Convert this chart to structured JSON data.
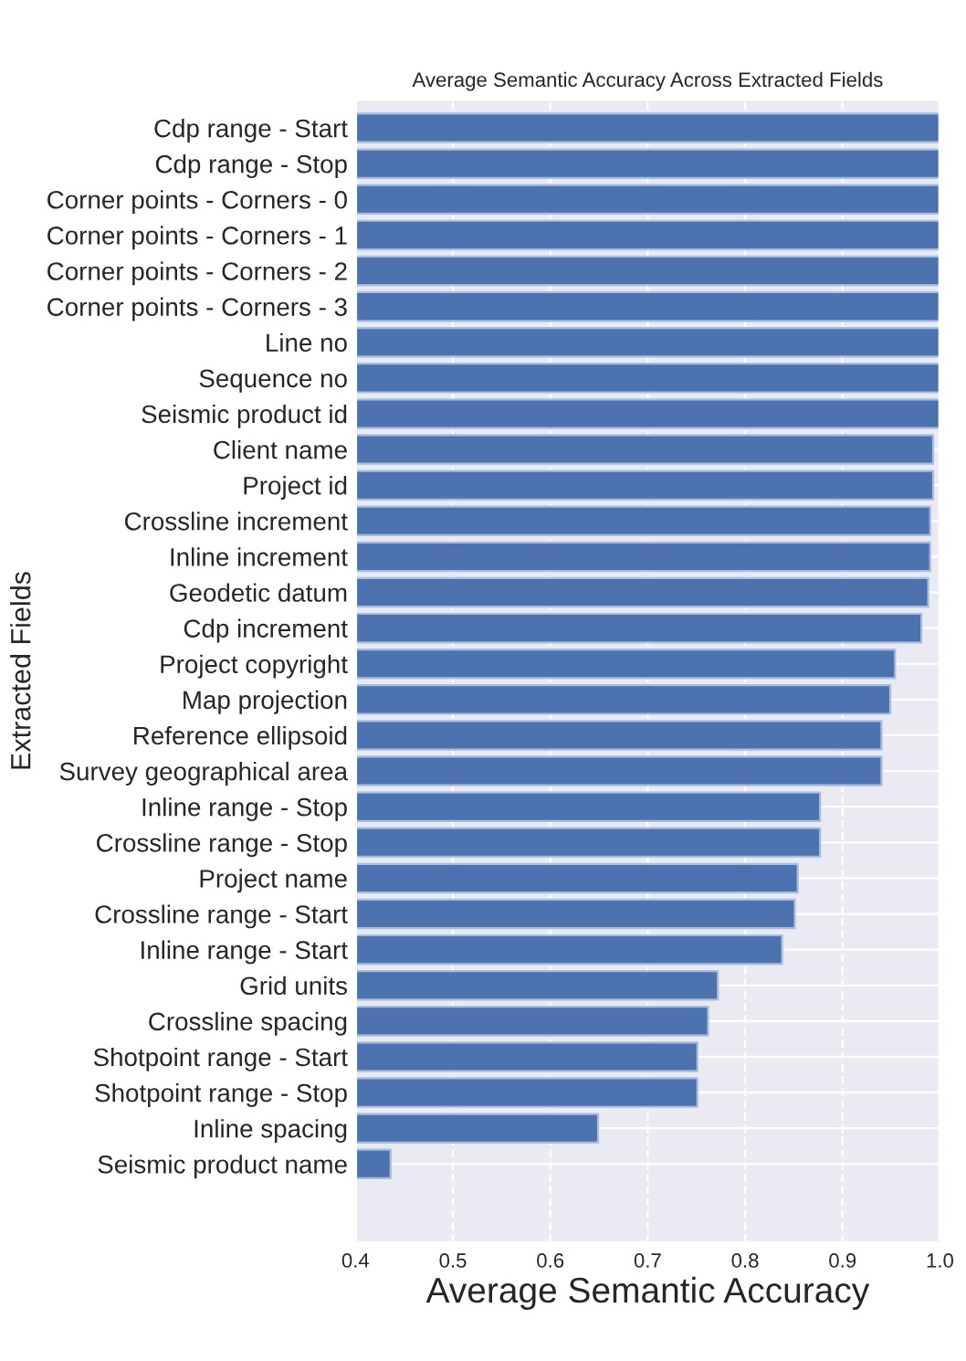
{
  "chart_data": {
    "type": "bar",
    "orientation": "horizontal",
    "title": "Average Semantic Accuracy Across Extracted Fields",
    "xlabel": "Average Semantic Accuracy",
    "ylabel": "Extracted Fields",
    "categories": [
      "Cdp range - Start",
      "Cdp range - Stop",
      "Corner points - Corners - 0",
      "Corner points - Corners - 1",
      "Corner points - Corners - 2",
      "Corner points - Corners - 3",
      "Line no",
      "Sequence no",
      "Seismic product id",
      "Client name",
      "Project id",
      "Crossline increment",
      "Inline increment",
      "Geodetic datum",
      "Cdp increment",
      "Project copyright",
      "Map projection",
      "Reference ellipsoid",
      "Survey geographical area",
      "Inline range - Stop",
      "Crossline range - Stop",
      "Project name",
      "Crossline range - Start",
      "Inline range - Start",
      "Grid units",
      "Crossline spacing",
      "Shotpoint range - Start",
      "Shotpoint range - Stop",
      "Inline spacing",
      "Seismic product name"
    ],
    "values": [
      1.0,
      1.0,
      1.0,
      1.0,
      1.0,
      1.0,
      1.0,
      1.0,
      1.0,
      0.993,
      0.993,
      0.99,
      0.99,
      0.988,
      0.981,
      0.954,
      0.949,
      0.94,
      0.94,
      0.877,
      0.877,
      0.854,
      0.851,
      0.838,
      0.772,
      0.762,
      0.751,
      0.751,
      0.649,
      0.436
    ],
    "color": "#4c72b0",
    "xlim": [
      0.4,
      1.0
    ],
    "xticks": [
      0.4,
      0.5,
      0.6,
      0.7,
      0.8,
      0.9,
      {
        "value": 1.0,
        "label": "1.0"
      }
    ],
    "grid": true
  }
}
